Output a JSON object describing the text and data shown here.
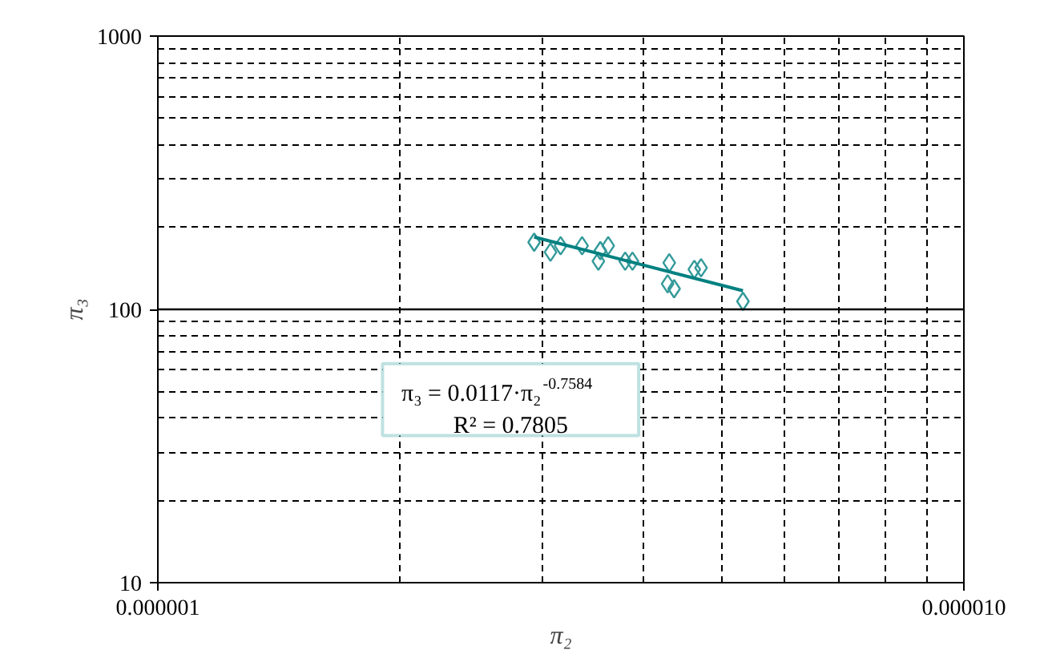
{
  "chart_data": {
    "type": "scatter",
    "xlabel": "π₂",
    "ylabel": "π₃",
    "log": "xy",
    "grid": true,
    "marker": "diamond",
    "ref_lines": [
      {
        "axis": "y",
        "value": 100,
        "color": "#000000"
      }
    ],
    "xlim": [
      1e-06,
      1e-05
    ],
    "xticks": [
      {
        "value": 1e-06,
        "label": "0.000001"
      },
      {
        "value": 2e-06,
        "label": null
      },
      {
        "value": 3e-06,
        "label": null
      },
      {
        "value": 4e-06,
        "label": null
      },
      {
        "value": 5e-06,
        "label": null
      },
      {
        "value": 6e-06,
        "label": null
      },
      {
        "value": 7e-06,
        "label": null
      },
      {
        "value": 8e-06,
        "label": null
      },
      {
        "value": 9e-06,
        "label": null
      },
      {
        "value": 1e-05,
        "label": "0.000010"
      }
    ],
    "ylim": [
      10,
      1000
    ],
    "yticks": [
      10,
      {
        "value": 20,
        "label": null
      },
      {
        "value": 30,
        "label": null
      },
      {
        "value": 40,
        "label": null
      },
      {
        "value": 50,
        "label": null
      },
      {
        "value": 60,
        "label": null
      },
      {
        "value": 70,
        "label": null
      },
      {
        "value": 80,
        "label": null
      },
      {
        "value": 90,
        "label": null
      },
      100,
      {
        "value": 200,
        "label": null
      },
      {
        "value": 300,
        "label": null
      },
      {
        "value": 400,
        "label": null
      },
      {
        "value": 500,
        "label": null
      },
      {
        "value": 600,
        "label": null
      },
      {
        "value": 700,
        "label": null
      },
      {
        "value": 800,
        "label": null
      },
      {
        "value": 900,
        "label": null
      },
      1000
    ],
    "series": [
      {
        "color": "#339999",
        "x": [
          2.93e-06,
          3.07e-06,
          3.16e-06,
          3.36e-06,
          3.52e-06,
          3.54e-06,
          3.62e-06,
          3.8e-06,
          3.88e-06,
          4.31e-06,
          4.29e-06,
          4.37e-06,
          4.63e-06,
          4.72e-06,
          5.32e-06
        ],
        "values": [
          176,
          162,
          171,
          171,
          150,
          164,
          171,
          150,
          150,
          148,
          124,
          119,
          140,
          142,
          107
        ]
      },
      {
        "type": "line",
        "marker": "none",
        "color": "#008080",
        "x": [
          2.93e-06,
          5.32e-06
        ],
        "values": [
          184,
          117
        ]
      }
    ],
    "annotations": [
      "π₃ = 0.0117·π₂$^{-0.7584}$",
      "R² = 0.7805"
    ]
  }
}
